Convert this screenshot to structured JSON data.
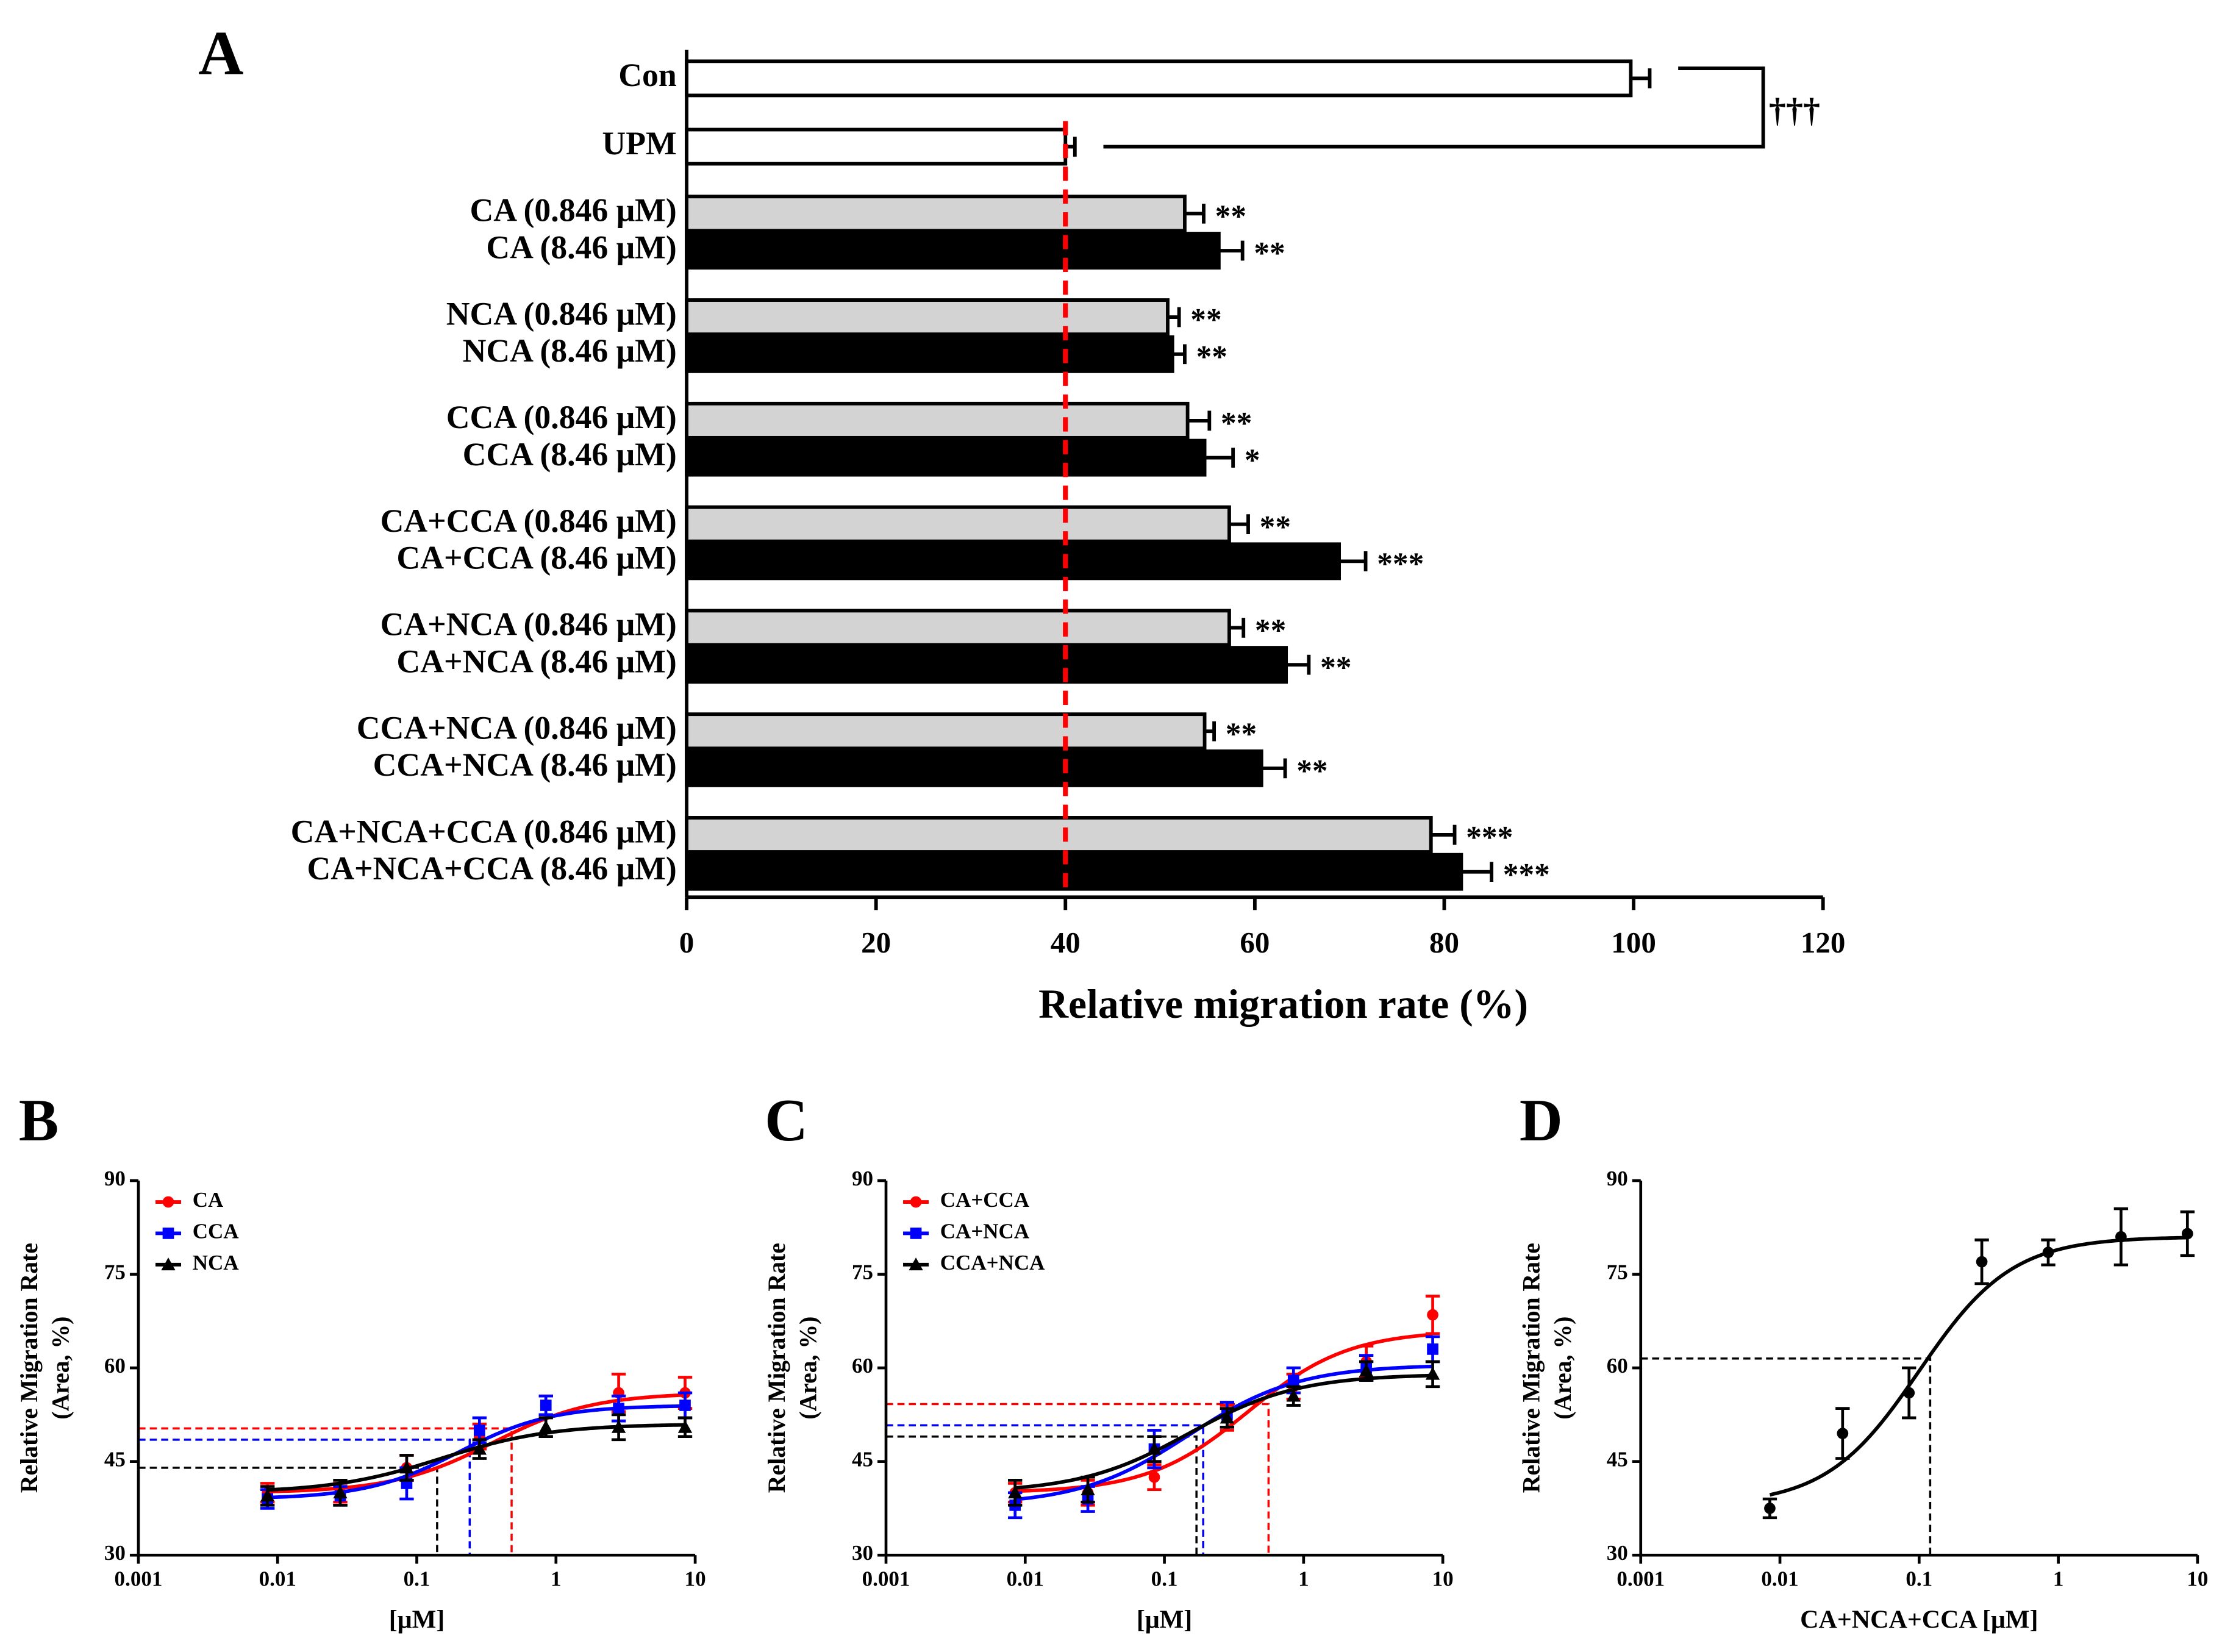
{
  "chart_data": [
    {
      "type": "bar",
      "orientation": "horizontal",
      "panel": "A",
      "categories": [
        "Con",
        "UPM",
        "CA (0.846 μM)",
        "CA (8.46 μM)",
        "NCA (0.846 μM)",
        "NCA (8.46 μM)",
        "CCA (0.846 μM)",
        "CCA (8.46 μM)",
        "CA+CCA (0.846 μM)",
        "CA+CCA (8.46 μM)",
        "CA+NCA (0.846 μM)",
        "CA+NCA (8.46 μM)",
        "CCA+NCA (0.846 μM)",
        "CCA+NCA (8.46 μM)",
        "CA+NCA+CCA (0.846 μM)",
        "CA+NCA+CCA (8.46 μM)"
      ],
      "values": [
        99.7,
        40,
        52.6,
        56.2,
        50.8,
        51.3,
        52.9,
        54.7,
        57.3,
        68.9,
        57.3,
        63.3,
        54.7,
        60.7,
        78.6,
        81.8
      ],
      "errors": [
        2,
        1,
        2,
        2.5,
        1.2,
        1.3,
        2.3,
        3,
        2,
        2.8,
        1.5,
        2.4,
        1,
        2.5,
        2.5,
        3.2
      ],
      "colors": [
        "#ffffff",
        "#ffffff",
        "#d3d3d3",
        "#000000",
        "#d3d3d3",
        "#000000",
        "#d3d3d3",
        "#000000",
        "#d3d3d3",
        "#000000",
        "#d3d3d3",
        "#000000",
        "#d3d3d3",
        "#000000",
        "#d3d3d3",
        "#000000"
      ],
      "annotations": [
        null,
        null,
        "**",
        "**",
        "**",
        "**",
        "**",
        "*",
        "**",
        "***",
        "**",
        "**",
        "**",
        "**",
        "***",
        "***"
      ],
      "bracket_label": "†††",
      "reference_line": 40,
      "reference_color": "#ff0000",
      "xlim": [
        0,
        120
      ],
      "xticks": [
        0,
        20,
        40,
        60,
        80,
        100,
        120
      ],
      "xlabel": "Relative migration rate (%)"
    },
    {
      "type": "dose-response",
      "panel": "B",
      "xscale": "log",
      "x": [
        0.00846,
        0.0282,
        0.0846,
        0.282,
        0.846,
        2.82,
        8.46
      ],
      "xlim": [
        0.001,
        10
      ],
      "xticks": [
        0.001,
        0.01,
        0.1,
        1,
        10
      ],
      "ylim": [
        30,
        90
      ],
      "yticks": [
        30,
        45,
        60,
        75,
        90
      ],
      "xlabel": "[μM]",
      "ylabel": [
        "Relative Migration Rate",
        "(Area, %)"
      ],
      "legend": "upper left",
      "series": [
        {
          "name": "CA",
          "color": "#ff0000",
          "marker": "circle",
          "values": [
            40,
            40,
            44,
            49,
            54,
            56,
            56
          ],
          "errors": [
            1.5,
            1.5,
            2,
            2,
            1.5,
            3,
            2.5
          ],
          "fit_bottom": 40,
          "fit_top": 56,
          "fit_ec50": 0.35,
          "fit_hill": 1.2,
          "ec50_x": 0.48,
          "ec50_y": 50.3
        },
        {
          "name": "CCA",
          "color": "#0000ff",
          "marker": "square",
          "values": [
            39,
            39.5,
            41.5,
            50,
            54,
            53.5,
            54
          ],
          "errors": [
            1.5,
            1.5,
            2.5,
            2,
            1.5,
            2,
            2
          ],
          "fit_bottom": 39,
          "fit_top": 54,
          "fit_ec50": 0.2,
          "fit_hill": 1.3,
          "ec50_x": 0.24,
          "ec50_y": 48.5
        },
        {
          "name": "NCA",
          "color": "#000000",
          "marker": "triangle",
          "values": [
            39.5,
            40,
            44,
            47,
            50.5,
            50.5,
            50.5
          ],
          "errors": [
            1.5,
            2,
            2,
            1.5,
            1.5,
            2,
            1.5
          ],
          "fit_bottom": 40,
          "fit_top": 51,
          "fit_ec50": 0.15,
          "fit_hill": 1.1,
          "ec50_x": 0.14,
          "ec50_y": 44
        }
      ]
    },
    {
      "type": "dose-response",
      "panel": "C",
      "xscale": "log",
      "x": [
        0.00846,
        0.0282,
        0.0846,
        0.282,
        0.846,
        2.82,
        8.46
      ],
      "xlim": [
        0.001,
        10
      ],
      "xticks": [
        0.001,
        0.01,
        0.1,
        1,
        10
      ],
      "ylim": [
        30,
        90
      ],
      "yticks": [
        30,
        45,
        60,
        75,
        90
      ],
      "xlabel": "[μM]",
      "ylabel": [
        "Relative Migration Rate",
        "(Area, %)"
      ],
      "legend": "upper left",
      "series": [
        {
          "name": "CA+CCA",
          "color": "#ff0000",
          "marker": "circle",
          "values": [
            40,
            40,
            42.5,
            52,
            57,
            61,
            68.5
          ],
          "errors": [
            1.5,
            2,
            2,
            2,
            2,
            2.5,
            3
          ],
          "fit_bottom": 40,
          "fit_top": 66,
          "fit_ec50": 0.4,
          "fit_hill": 1.2,
          "ec50_x": 0.56,
          "ec50_y": 54.2
        },
        {
          "name": "CA+NCA",
          "color": "#0000ff",
          "marker": "square",
          "values": [
            38,
            39,
            47,
            52.5,
            58,
            60,
            63
          ],
          "errors": [
            2,
            2,
            3,
            2,
            2,
            2,
            2
          ],
          "fit_bottom": 38,
          "fit_top": 60.5,
          "fit_ec50": 0.15,
          "fit_hill": 1.1,
          "ec50_x": 0.19,
          "ec50_y": 50.8
        },
        {
          "name": "CCA+NCA",
          "color": "#000000",
          "marker": "triangle",
          "values": [
            40,
            40.5,
            47,
            52,
            55.5,
            59.5,
            59
          ],
          "errors": [
            2,
            2,
            2,
            1.5,
            1.5,
            1.5,
            2
          ],
          "fit_bottom": 40,
          "fit_top": 59,
          "fit_ec50": 0.15,
          "fit_hill": 1.1,
          "ec50_x": 0.17,
          "ec50_y": 49
        }
      ]
    },
    {
      "type": "dose-response",
      "panel": "D",
      "xscale": "log",
      "x": [
        0.00846,
        0.0282,
        0.0846,
        0.282,
        0.846,
        2.82,
        8.46
      ],
      "xlim": [
        0.001,
        10
      ],
      "xticks": [
        0.001,
        0.01,
        0.1,
        1,
        10
      ],
      "ylim": [
        30,
        90
      ],
      "yticks": [
        30,
        45,
        60,
        75,
        90
      ],
      "xlabel": "CA+NCA+CCA [μM]",
      "ylabel": [
        "Relative Migration Rate",
        "(Area, %)"
      ],
      "series": [
        {
          "color": "#000000",
          "marker": "circle",
          "values": [
            37.5,
            49.5,
            56,
            77,
            78.5,
            81,
            81.5
          ],
          "errors": [
            1.5,
            4,
            4,
            3.5,
            2,
            4.5,
            3.5
          ],
          "fit_bottom": 38,
          "fit_top": 81,
          "fit_ec50": 0.1,
          "fit_hill": 1.3,
          "ec50_x": 0.12,
          "ec50_y": 61.5
        }
      ]
    }
  ]
}
